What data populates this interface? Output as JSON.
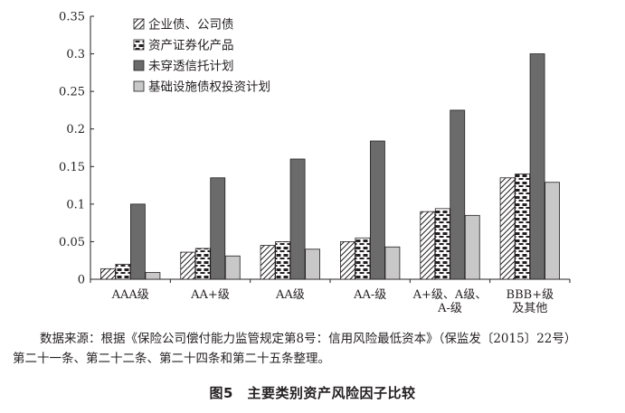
{
  "chart_data": {
    "type": "bar",
    "categories": [
      "AAA级",
      "AA+级",
      "AA级",
      "AA-级",
      "A+级、A级、A-级",
      "BBB+级及其他"
    ],
    "category_labels": [
      [
        "AAA级"
      ],
      [
        "AA+级"
      ],
      [
        "AA级"
      ],
      [
        "AA-级"
      ],
      [
        "A+级、A级、",
        "A-级"
      ],
      [
        "BBB+级",
        "及其他"
      ]
    ],
    "series": [
      {
        "name": "企业债、公司债",
        "values": [
          0.014,
          0.036,
          0.045,
          0.05,
          0.09,
          0.135
        ],
        "style": "diagonal-hatch"
      },
      {
        "name": "资产证券化产品",
        "values": [
          0.02,
          0.041,
          0.05,
          0.055,
          0.094,
          0.14
        ],
        "style": "brick"
      },
      {
        "name": "未穿透信托计划",
        "values": [
          0.1,
          0.135,
          0.16,
          0.184,
          0.225,
          0.3
        ],
        "style": "dark-gray"
      },
      {
        "name": "基础设施债权投资计划",
        "values": [
          0.009,
          0.031,
          0.04,
          0.043,
          0.085,
          0.129
        ],
        "style": "light-gray"
      }
    ],
    "yticks": [
      "0",
      "0.05",
      "0.1",
      "0.15",
      "0.2",
      "0.25",
      "0.3",
      "0.35"
    ],
    "ylim": [
      0,
      0.35
    ],
    "legend_position": "top-left",
    "colors": {
      "dark": "#6b6b6b",
      "light": "#c8c8c8",
      "outline": "#231f20"
    }
  },
  "source_note": {
    "line1": "数据来源：根据《保险公司偿付能力监管规定第8号：信用风险最低资本》（保监发〔2015〕22号）",
    "line2": "第二十一条、第二十二条、第二十四条和第二十五条整理。"
  },
  "caption": "图5　主要类别资产风险因子比较"
}
